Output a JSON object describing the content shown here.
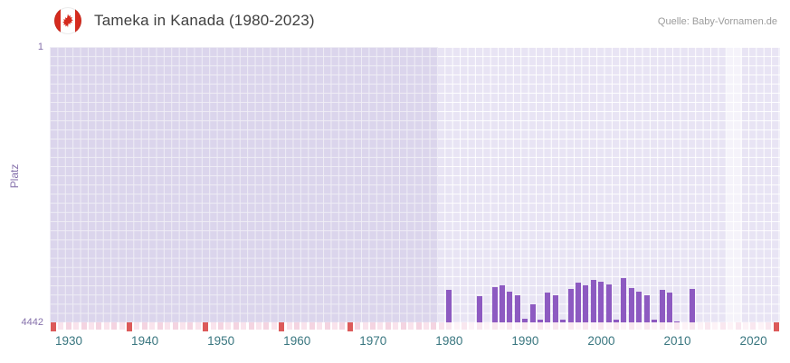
{
  "header": {
    "title": "Tameka in Kanada (1980-2023)",
    "source": "Quelle: Baby-Vornamen.de",
    "flag": "canada-flag"
  },
  "axis": {
    "y_top": "1",
    "y_bottom": "4442",
    "y_label": "Platz",
    "x_ticks": [
      1930,
      1940,
      1950,
      1960,
      1970,
      1980,
      1990,
      2000,
      2010,
      2020
    ]
  },
  "colors": {
    "bar_purple": "#8d5ac1",
    "plot_background": "#e8e4f4",
    "marker_red": "#dc5a5a",
    "pink": "#f4d4e1",
    "pink_light": "#f9e3ec",
    "pink_pale": "#f9e7ef",
    "pink_faint": "#fdf3f7",
    "x_tick_color": "#3a7780",
    "y_tick_color": "#8570ab",
    "title_color": "#3f3f3f"
  },
  "chart_data": {
    "type": "bar",
    "title": "Tameka in Kanada (1980-2023)",
    "xlabel": "",
    "ylabel": "Platz",
    "x_range": [
      1928,
      2024
    ],
    "ylim": [
      4442,
      1
    ],
    "y_axis_inverted": true,
    "grid": true,
    "legend": false,
    "bands": [
      {
        "name": "no-data-band",
        "from": 1928,
        "to": 1979,
        "color": "rgba(108,88,168,0.10)"
      },
      {
        "name": "highlight-band",
        "from": 2017,
        "to": 2019,
        "color": "rgba(255,255,255,0.55)"
      }
    ],
    "marker_years_red": [
      1928,
      1938,
      1948,
      1958,
      1967,
      2023
    ],
    "points": [
      {
        "year": 1980,
        "rank": 3920
      },
      {
        "year": 1984,
        "rank": 4020
      },
      {
        "year": 1986,
        "rank": 3880
      },
      {
        "year": 1987,
        "rank": 3850
      },
      {
        "year": 1988,
        "rank": 3940
      },
      {
        "year": 1989,
        "rank": 4000
      },
      {
        "year": 1990,
        "rank": 4380
      },
      {
        "year": 1991,
        "rank": 4150
      },
      {
        "year": 1992,
        "rank": 4400
      },
      {
        "year": 1993,
        "rank": 3960
      },
      {
        "year": 1994,
        "rank": 4010
      },
      {
        "year": 1995,
        "rank": 4400
      },
      {
        "year": 1996,
        "rank": 3900
      },
      {
        "year": 1997,
        "rank": 3800
      },
      {
        "year": 1998,
        "rank": 3850
      },
      {
        "year": 1999,
        "rank": 3760
      },
      {
        "year": 2000,
        "rank": 3790
      },
      {
        "year": 2001,
        "rank": 3830
      },
      {
        "year": 2002,
        "rank": 4400
      },
      {
        "year": 2003,
        "rank": 3730
      },
      {
        "year": 2004,
        "rank": 3890
      },
      {
        "year": 2005,
        "rank": 3950
      },
      {
        "year": 2006,
        "rank": 4000
      },
      {
        "year": 2007,
        "rank": 4400
      },
      {
        "year": 2008,
        "rank": 3920
      },
      {
        "year": 2009,
        "rank": 3960
      },
      {
        "year": 2010,
        "rank": 4420
      },
      {
        "year": 2012,
        "rank": 3900
      }
    ]
  }
}
